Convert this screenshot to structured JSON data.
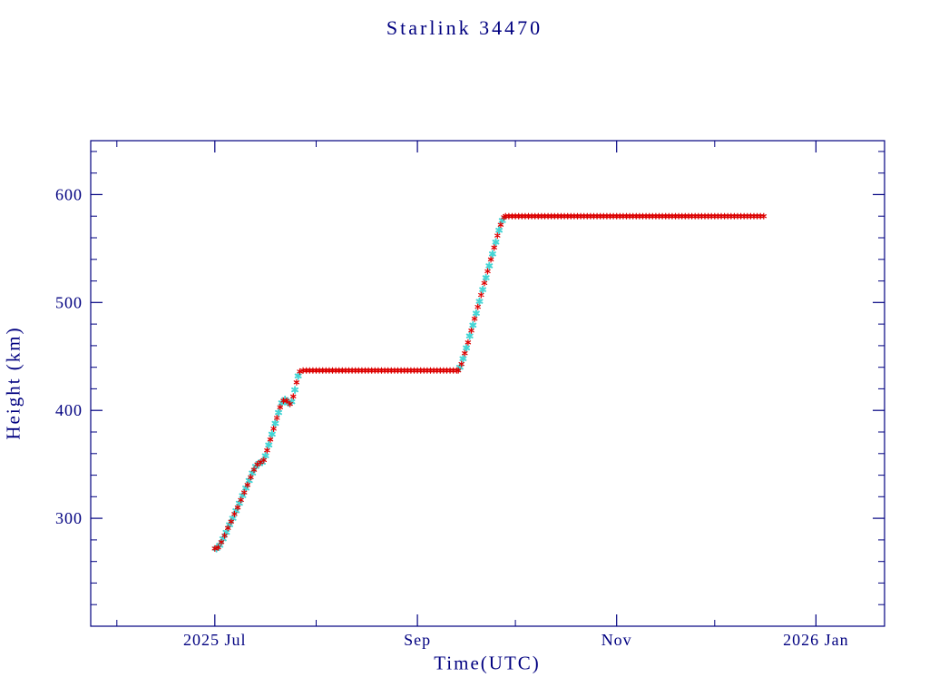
{
  "page": {
    "background": "#ffffff"
  },
  "chart_data": {
    "type": "scatter",
    "title": "Starlink 34470",
    "xlabel": "Time(UTC)",
    "ylabel": "Height (km)",
    "axis_color": "#000080",
    "grid": false,
    "legend": null,
    "x_unit": "days since 2025-07-01",
    "xlim": [
      -38,
      205
    ],
    "ylim": [
      200,
      650
    ],
    "x_ticks": [
      {
        "t": 0,
        "label": "2025 Jul"
      },
      {
        "t": 62,
        "label": "Sep"
      },
      {
        "t": 123,
        "label": "Nov"
      },
      {
        "t": 184,
        "label": "2026 Jan"
      }
    ],
    "x_minor_ticks": [
      -30,
      31,
      92,
      153
    ],
    "y_ticks": [
      300,
      400,
      500,
      600
    ],
    "y_minor_step": 20,
    "series": [
      {
        "name": "height-secondary",
        "color": "#45d5d5",
        "marker": "asterisk",
        "marker_radius": 3.4,
        "stroke_width": 2,
        "points": [
          [
            0.5,
            272
          ],
          [
            1.5,
            275
          ],
          [
            2.5,
            281
          ],
          [
            3.5,
            287
          ],
          [
            4.5,
            294
          ],
          [
            5.5,
            300
          ],
          [
            6.5,
            307
          ],
          [
            7.5,
            314
          ],
          [
            8.5,
            321
          ],
          [
            9.5,
            328
          ],
          [
            10.5,
            335
          ],
          [
            11.5,
            342
          ],
          [
            12.5,
            348
          ],
          [
            13.5,
            351
          ],
          [
            14.5,
            352
          ],
          [
            15.5,
            358
          ],
          [
            16.5,
            368
          ],
          [
            17.5,
            378
          ],
          [
            18.5,
            388
          ],
          [
            19.5,
            398
          ],
          [
            20.5,
            407
          ],
          [
            21.5,
            410
          ],
          [
            22.5,
            407
          ],
          [
            23.5,
            408
          ],
          [
            24.5,
            419
          ],
          [
            25.5,
            432
          ],
          [
            75,
            440
          ],
          [
            76,
            448
          ],
          [
            77,
            458
          ],
          [
            78,
            469
          ],
          [
            79,
            479
          ],
          [
            80,
            490
          ],
          [
            81,
            501
          ],
          [
            82,
            512
          ],
          [
            83,
            523
          ],
          [
            84,
            534
          ],
          [
            85,
            545
          ],
          [
            86,
            556
          ],
          [
            87,
            567
          ],
          [
            88,
            576
          ]
        ]
      },
      {
        "name": "height-primary",
        "color": "#dc0000",
        "marker": "asterisk",
        "marker_radius": 3,
        "stroke_width": 1.2,
        "points": [
          [
            0,
            272
          ],
          [
            1,
            273
          ],
          [
            2,
            278
          ],
          [
            3,
            284
          ],
          [
            4,
            291
          ],
          [
            5,
            297
          ],
          [
            6,
            304
          ],
          [
            7,
            310
          ],
          [
            8,
            317
          ],
          [
            9,
            324
          ],
          [
            10,
            331
          ],
          [
            11,
            338
          ],
          [
            12,
            345
          ],
          [
            13,
            350
          ],
          [
            14,
            352
          ],
          [
            15,
            354
          ],
          [
            16,
            363
          ],
          [
            17,
            373
          ],
          [
            18,
            383
          ],
          [
            19,
            393
          ],
          [
            20,
            403
          ],
          [
            21,
            409
          ],
          [
            22,
            409
          ],
          [
            23,
            406
          ],
          [
            24,
            413
          ],
          [
            25,
            426
          ],
          [
            26,
            436
          ],
          [
            27,
            437
          ],
          [
            28,
            437
          ],
          [
            29,
            437
          ],
          [
            30,
            437
          ],
          [
            31,
            437
          ],
          [
            32,
            437
          ],
          [
            33,
            437
          ],
          [
            34,
            437
          ],
          [
            35,
            437
          ],
          [
            36,
            437
          ],
          [
            37,
            437
          ],
          [
            38,
            437
          ],
          [
            39,
            437
          ],
          [
            40,
            437
          ],
          [
            41,
            437
          ],
          [
            42,
            437
          ],
          [
            43,
            437
          ],
          [
            44,
            437
          ],
          [
            45,
            437
          ],
          [
            46,
            437
          ],
          [
            47,
            437
          ],
          [
            48,
            437
          ],
          [
            49,
            437
          ],
          [
            50,
            437
          ],
          [
            51,
            437
          ],
          [
            52,
            437
          ],
          [
            53,
            437
          ],
          [
            54,
            437
          ],
          [
            55,
            437
          ],
          [
            56,
            437
          ],
          [
            57,
            437
          ],
          [
            58,
            437
          ],
          [
            59,
            437
          ],
          [
            60,
            437
          ],
          [
            61,
            437
          ],
          [
            62,
            437
          ],
          [
            63,
            437
          ],
          [
            64,
            437
          ],
          [
            65,
            437
          ],
          [
            66,
            437
          ],
          [
            67,
            437
          ],
          [
            68,
            437
          ],
          [
            69,
            437
          ],
          [
            70,
            437
          ],
          [
            71,
            437
          ],
          [
            72,
            437
          ],
          [
            73,
            437
          ],
          [
            74,
            437
          ],
          [
            74.5,
            437
          ],
          [
            75.5,
            443
          ],
          [
            76.5,
            453
          ],
          [
            77.5,
            463
          ],
          [
            78.5,
            474
          ],
          [
            79.5,
            485
          ],
          [
            80.5,
            496
          ],
          [
            81.5,
            507
          ],
          [
            82.5,
            518
          ],
          [
            83.5,
            529
          ],
          [
            84.5,
            540
          ],
          [
            85.5,
            551
          ],
          [
            86.5,
            562
          ],
          [
            87.5,
            572
          ],
          [
            88.5,
            579
          ],
          [
            89,
            580
          ],
          [
            90,
            580
          ],
          [
            91,
            580
          ],
          [
            92,
            580
          ],
          [
            93,
            580
          ],
          [
            94,
            580
          ],
          [
            95,
            580
          ],
          [
            96,
            580
          ],
          [
            97,
            580
          ],
          [
            98,
            580
          ],
          [
            99,
            580
          ],
          [
            100,
            580
          ],
          [
            101,
            580
          ],
          [
            102,
            580
          ],
          [
            103,
            580
          ],
          [
            104,
            580
          ],
          [
            105,
            580
          ],
          [
            106,
            580
          ],
          [
            107,
            580
          ],
          [
            108,
            580
          ],
          [
            109,
            580
          ],
          [
            110,
            580
          ],
          [
            111,
            580
          ],
          [
            112,
            580
          ],
          [
            113,
            580
          ],
          [
            114,
            580
          ],
          [
            115,
            580
          ],
          [
            116,
            580
          ],
          [
            117,
            580
          ],
          [
            118,
            580
          ],
          [
            119,
            580
          ],
          [
            120,
            580
          ],
          [
            121,
            580
          ],
          [
            122,
            580
          ],
          [
            123,
            580
          ],
          [
            124,
            580
          ],
          [
            125,
            580
          ],
          [
            126,
            580
          ],
          [
            127,
            580
          ],
          [
            128,
            580
          ],
          [
            129,
            580
          ],
          [
            130,
            580
          ],
          [
            131,
            580
          ],
          [
            132,
            580
          ],
          [
            133,
            580
          ],
          [
            134,
            580
          ],
          [
            135,
            580
          ],
          [
            136,
            580
          ],
          [
            137,
            580
          ],
          [
            138,
            580
          ],
          [
            139,
            580
          ],
          [
            140,
            580
          ],
          [
            141,
            580
          ],
          [
            142,
            580
          ],
          [
            143,
            580
          ],
          [
            144,
            580
          ],
          [
            145,
            580
          ],
          [
            146,
            580
          ],
          [
            147,
            580
          ],
          [
            148,
            580
          ],
          [
            149,
            580
          ],
          [
            150,
            580
          ],
          [
            151,
            580
          ],
          [
            152,
            580
          ],
          [
            153,
            580
          ],
          [
            154,
            580
          ],
          [
            155,
            580
          ],
          [
            156,
            580
          ],
          [
            157,
            580
          ],
          [
            158,
            580
          ],
          [
            159,
            580
          ],
          [
            160,
            580
          ],
          [
            161,
            580
          ],
          [
            162,
            580
          ],
          [
            163,
            580
          ],
          [
            164,
            580
          ],
          [
            165,
            580
          ],
          [
            166,
            580
          ],
          [
            167,
            580
          ],
          [
            168,
            580
          ]
        ]
      }
    ]
  }
}
